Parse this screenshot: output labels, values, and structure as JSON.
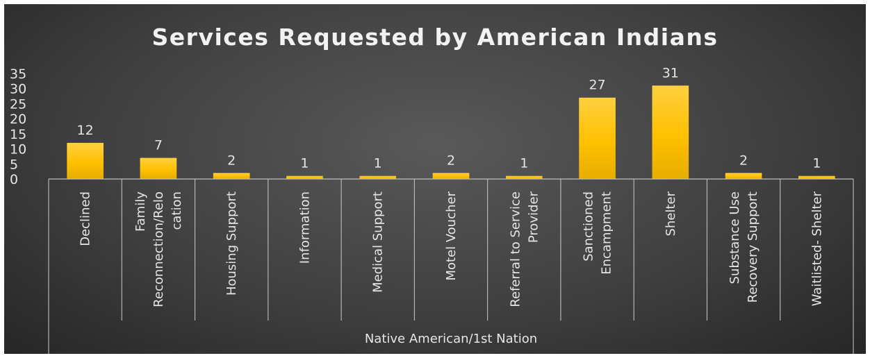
{
  "chart_data": {
    "type": "bar",
    "title": "Services Requested by American Indians",
    "group_label": "Native American/1st Nation",
    "categories": [
      [
        "Declined"
      ],
      [
        "Family",
        "Reconnection/Relo",
        "cation"
      ],
      [
        "Housing Support"
      ],
      [
        "Information"
      ],
      [
        "Medical Support"
      ],
      [
        "Motel Voucher"
      ],
      [
        "Referral to Service",
        "Provider"
      ],
      [
        "Sanctioned",
        "Encampment"
      ],
      [
        "Shelter"
      ],
      [
        "Substance Use",
        "Recovery Support"
      ],
      [
        "Waitlisted- Shelter"
      ]
    ],
    "values": [
      12,
      7,
      2,
      1,
      1,
      2,
      1,
      27,
      31,
      2,
      1
    ],
    "yticks": [
      0,
      5,
      10,
      15,
      20,
      25,
      30,
      35
    ],
    "ylim": [
      0,
      35
    ],
    "grid": false,
    "legend": "none",
    "bar_color": "#ffc000",
    "axis_color": "#bfbfbf",
    "text_color": "#e6e6e6"
  }
}
